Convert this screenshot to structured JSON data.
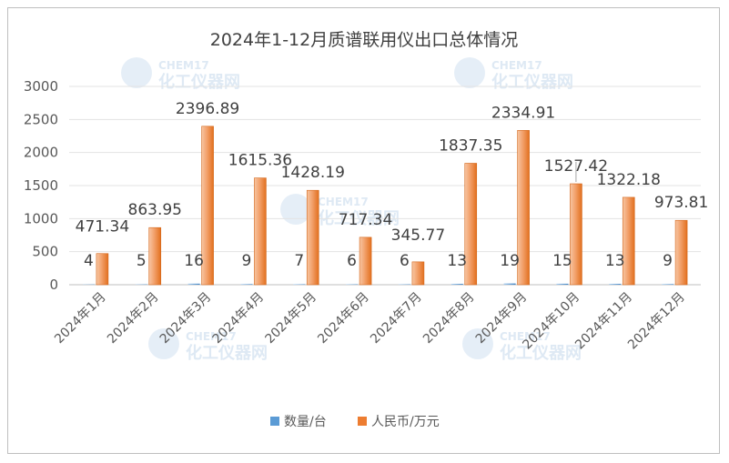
{
  "chart_data": {
    "type": "bar",
    "title": "2024年1-12月质谱联用仪出口总体情况",
    "categories": [
      "2024年1月",
      "2024年2月",
      "2024年3月",
      "2024年4月",
      "2024年5月",
      "2024年6月",
      "2024年7月",
      "2024年8月",
      "2024年9月",
      "2024年10月",
      "2024年11月",
      "2024年12月"
    ],
    "series": [
      {
        "name": "数量/台",
        "values": [
          4,
          5,
          16,
          9,
          7,
          6,
          6,
          13,
          19,
          15,
          13,
          9
        ]
      },
      {
        "name": "人民币/万元",
        "values": [
          471.34,
          863.95,
          2396.89,
          1615.36,
          1428.19,
          717.34,
          345.77,
          1837.35,
          2334.91,
          1527.42,
          1322.18,
          973.81
        ]
      }
    ],
    "count_labels": [
      "4",
      "5",
      "16",
      "9",
      "7",
      "6",
      "6",
      "13",
      "19",
      "15",
      "13",
      "9"
    ],
    "value_labels": [
      "471.34",
      "863.95",
      "2396.89",
      "1615.36",
      "1428.19",
      "717.34",
      "345.77",
      "1837.35",
      "2334.91",
      "1527.42",
      "1322.18",
      "973.81"
    ],
    "y_ticks": [
      "0",
      "500",
      "1000",
      "1500",
      "2000",
      "2500",
      "3000"
    ],
    "ylim": [
      0,
      3000
    ],
    "grid": true,
    "legend_position": "bottom",
    "colors": {
      "count": "#5b9bd5",
      "value": "#ed7d31"
    }
  },
  "watermark": {
    "brand": "CHEM17",
    "name": "化工仪器网"
  }
}
